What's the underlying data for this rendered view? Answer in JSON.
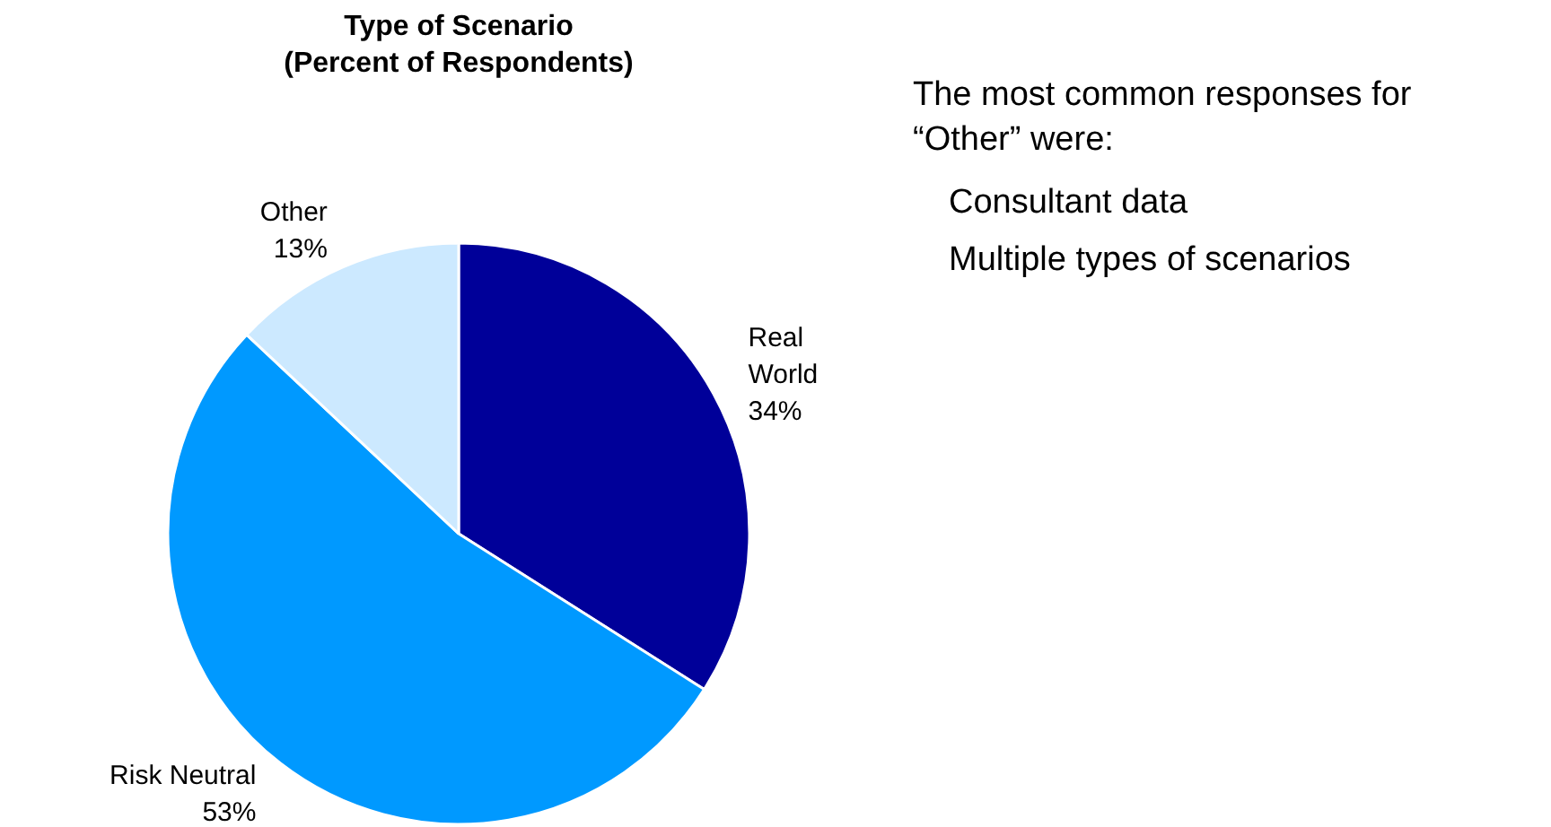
{
  "chart_data": {
    "type": "pie",
    "title": "Type of Scenario\n(Percent of Respondents)",
    "categories": [
      "Real World",
      "Risk Neutral",
      "Other"
    ],
    "values": [
      34,
      53,
      13
    ],
    "colors": [
      "#000099",
      "#0099ff",
      "#cce9ff"
    ],
    "value_labels": [
      "34%",
      "53%",
      "13%"
    ],
    "annotations": [
      "The most common responses for “Other” were:",
      "Consultant data",
      "Multiple types of scenarios"
    ]
  }
}
